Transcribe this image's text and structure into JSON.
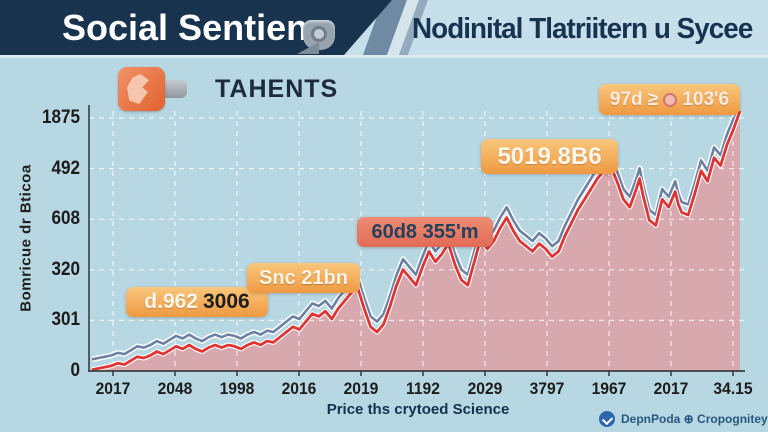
{
  "header": {
    "left_title": "Social Sentiens",
    "right_title": "Nodinital Tlatriitern u Sycee"
  },
  "legend": {
    "label": "TAHENTS"
  },
  "chart_data": {
    "type": "area",
    "xlabel": "Price ths crytoed Science",
    "ylabel": "Bomricue dr Bticoa",
    "x_ticks": [
      "2017",
      "2048",
      "1998",
      "2016",
      "2019",
      "1192",
      "2029",
      "3797",
      "1967",
      "2017",
      "34.15"
    ],
    "y_ticks_top_to_bottom": [
      "1875",
      "492",
      "608",
      "320",
      "301",
      "0"
    ],
    "grid": "white-dashed",
    "legend_position": "top-left",
    "colors": {
      "price_line": "#de3434",
      "trend_line": "#6d81a4",
      "area_fill": "#d8a5ab",
      "halo": "#ffffff"
    },
    "badges": [
      {
        "part1": "d.962",
        "part2": "3006"
      },
      {
        "text": "Snc 21bn"
      },
      {
        "text": "60d8 355'm"
      },
      {
        "text": "5019.8B6"
      },
      {
        "part1": "97d ≥",
        "part2": "103'6"
      }
    ],
    "trend_offset": 0.04,
    "series": [
      {
        "name": "price-red",
        "points": [
          [
            0,
            0.005
          ],
          [
            0.01,
            0.01
          ],
          [
            0.02,
            0.015
          ],
          [
            0.03,
            0.02
          ],
          [
            0.04,
            0.03
          ],
          [
            0.05,
            0.025
          ],
          [
            0.06,
            0.04
          ],
          [
            0.07,
            0.055
          ],
          [
            0.08,
            0.05
          ],
          [
            0.09,
            0.06
          ],
          [
            0.1,
            0.075
          ],
          [
            0.11,
            0.065
          ],
          [
            0.12,
            0.08
          ],
          [
            0.13,
            0.095
          ],
          [
            0.14,
            0.085
          ],
          [
            0.15,
            0.1
          ],
          [
            0.16,
            0.085
          ],
          [
            0.17,
            0.075
          ],
          [
            0.18,
            0.09
          ],
          [
            0.19,
            0.1
          ],
          [
            0.2,
            0.09
          ],
          [
            0.21,
            0.1
          ],
          [
            0.22,
            0.095
          ],
          [
            0.23,
            0.085
          ],
          [
            0.24,
            0.1
          ],
          [
            0.25,
            0.11
          ],
          [
            0.26,
            0.1
          ],
          [
            0.27,
            0.115
          ],
          [
            0.28,
            0.11
          ],
          [
            0.29,
            0.13
          ],
          [
            0.3,
            0.15
          ],
          [
            0.31,
            0.17
          ],
          [
            0.32,
            0.16
          ],
          [
            0.33,
            0.19
          ],
          [
            0.34,
            0.22
          ],
          [
            0.35,
            0.21
          ],
          [
            0.36,
            0.23
          ],
          [
            0.37,
            0.2
          ],
          [
            0.38,
            0.24
          ],
          [
            0.39,
            0.27
          ],
          [
            0.4,
            0.3
          ],
          [
            0.41,
            0.32
          ],
          [
            0.42,
            0.24
          ],
          [
            0.43,
            0.17
          ],
          [
            0.44,
            0.15
          ],
          [
            0.45,
            0.18
          ],
          [
            0.46,
            0.25
          ],
          [
            0.47,
            0.33
          ],
          [
            0.48,
            0.39
          ],
          [
            0.49,
            0.36
          ],
          [
            0.5,
            0.33
          ],
          [
            0.51,
            0.4
          ],
          [
            0.52,
            0.46
          ],
          [
            0.53,
            0.42
          ],
          [
            0.54,
            0.45
          ],
          [
            0.55,
            0.49
          ],
          [
            0.56,
            0.41
          ],
          [
            0.57,
            0.35
          ],
          [
            0.58,
            0.33
          ],
          [
            0.59,
            0.42
          ],
          [
            0.6,
            0.51
          ],
          [
            0.61,
            0.47
          ],
          [
            0.62,
            0.5
          ],
          [
            0.63,
            0.55
          ],
          [
            0.64,
            0.59
          ],
          [
            0.65,
            0.54
          ],
          [
            0.66,
            0.5
          ],
          [
            0.67,
            0.48
          ],
          [
            0.68,
            0.46
          ],
          [
            0.69,
            0.49
          ],
          [
            0.7,
            0.47
          ],
          [
            0.71,
            0.44
          ],
          [
            0.72,
            0.46
          ],
          [
            0.73,
            0.52
          ],
          [
            0.74,
            0.57
          ],
          [
            0.75,
            0.62
          ],
          [
            0.76,
            0.66
          ],
          [
            0.77,
            0.7
          ],
          [
            0.78,
            0.74
          ],
          [
            0.79,
            0.77
          ],
          [
            0.8,
            0.79
          ],
          [
            0.81,
            0.73
          ],
          [
            0.82,
            0.66
          ],
          [
            0.83,
            0.63
          ],
          [
            0.84,
            0.7
          ],
          [
            0.845,
            0.74
          ],
          [
            0.85,
            0.68
          ],
          [
            0.86,
            0.58
          ],
          [
            0.87,
            0.56
          ],
          [
            0.88,
            0.66
          ],
          [
            0.89,
            0.63
          ],
          [
            0.9,
            0.69
          ],
          [
            0.905,
            0.64
          ],
          [
            0.91,
            0.61
          ],
          [
            0.92,
            0.6
          ],
          [
            0.93,
            0.68
          ],
          [
            0.94,
            0.77
          ],
          [
            0.95,
            0.73
          ],
          [
            0.96,
            0.82
          ],
          [
            0.97,
            0.79
          ],
          [
            0.98,
            0.87
          ],
          [
            0.99,
            0.93
          ],
          [
            1.0,
            1.0
          ]
        ]
      },
      {
        "name": "trend-blue",
        "derived": "price-red + trend_offset"
      }
    ]
  },
  "footer": {
    "source": "DepnPoda ⊕ Cropognitey"
  }
}
